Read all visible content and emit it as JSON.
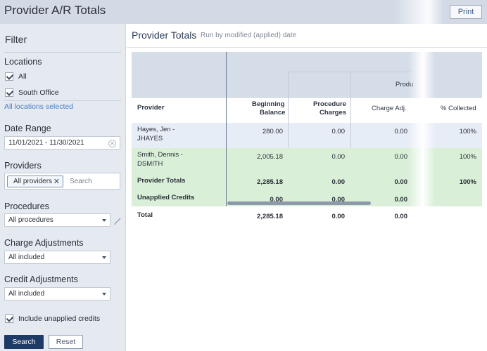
{
  "app": {
    "title": "Provider A/R Totals",
    "print_label": "Print"
  },
  "filter": {
    "title": "Filter",
    "locations": {
      "label": "Locations",
      "options": [
        {
          "label": "All",
          "checked": true
        },
        {
          "label": "South Office",
          "checked": true
        }
      ],
      "summary_link": "All locations selected"
    },
    "date_range": {
      "label": "Date Range",
      "value": "11/01/2021 - 11/30/2021"
    },
    "providers": {
      "label": "Providers",
      "chip": "All providers",
      "placeholder": "Search"
    },
    "procedures": {
      "label": "Procedures",
      "value": "All procedures"
    },
    "charge_adjustments": {
      "label": "Charge Adjustments",
      "value": "All included"
    },
    "credit_adjustments": {
      "label": "Credit Adjustments",
      "value": "All included"
    },
    "include_unapplied": {
      "label": "Include unapplied credits",
      "checked": true
    },
    "search_label": "Search",
    "reset_label": "Reset"
  },
  "report": {
    "title": "Provider Totals",
    "subtitle": "Run by modified (applied) date",
    "group_header": "Produ",
    "columns": {
      "provider": "Provider",
      "beginning_line1": "Beginning",
      "beginning_line2": "Balance",
      "procedure_line1": "Procedure",
      "procedure_line2": "Charges",
      "charge_adj": "Charge Adj.",
      "collected": "% Collected"
    },
    "rows": [
      {
        "provider_line1": "Hayes, Jen -",
        "provider_line2": "JHAYES",
        "beginning": "280.00",
        "procedure": "0.00",
        "charge_adj": "0.00",
        "collected": "100%"
      },
      {
        "provider_line1": "Smith, Dennis -",
        "provider_line2": "DSMITH",
        "beginning": "2,005.18",
        "procedure": "0.00",
        "charge_adj": "0.00",
        "collected": "100%"
      }
    ],
    "totals": [
      {
        "label": "Provider Totals",
        "beginning": "2,285.18",
        "procedure": "0.00",
        "charge_adj": "0.00",
        "collected": "100%"
      },
      {
        "label": "Unapplied Credits",
        "beginning": "0.00",
        "procedure": "0.00",
        "charge_adj": "0.00",
        "collected": ""
      },
      {
        "label": "Total",
        "beginning": "2,285.18",
        "procedure": "0.00",
        "charge_adj": "0.00",
        "collected": ""
      }
    ]
  }
}
